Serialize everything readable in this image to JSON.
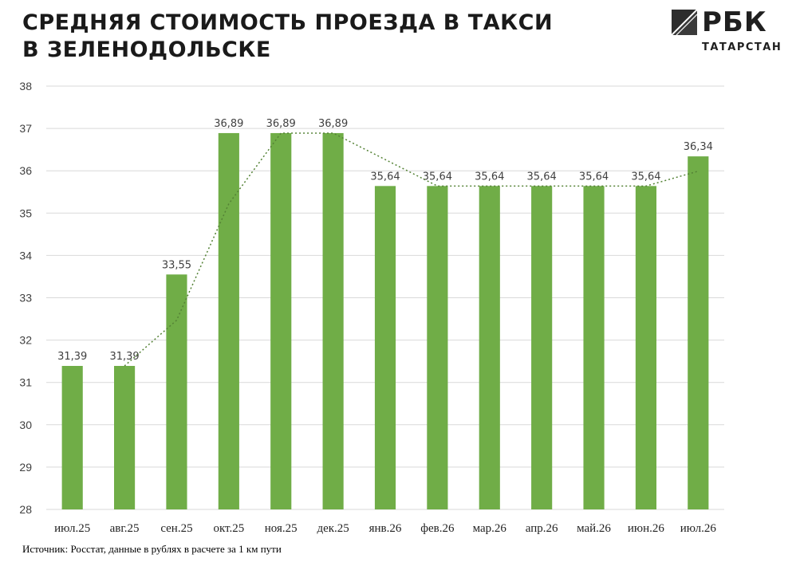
{
  "title_line1": "СРЕДНЯЯ СТОИМОСТЬ ПРОЕЗДА В ТАКСИ",
  "title_line2": "В ЗЕЛЕНОДОЛЬСКЕ",
  "logo": {
    "brand": "РБК",
    "region": "ТАТАРСТАН",
    "icon": "rbc-logo-icon"
  },
  "source": "Источник: Росстат, данные в рублях в расчете за 1 км пути",
  "colors": {
    "bar": "#70ad47",
    "trendline": "#548235",
    "grid": "#d9d9d9",
    "text": "#404040"
  },
  "chart_data": {
    "type": "bar",
    "categories": [
      "июл.25",
      "авг.25",
      "сен.25",
      "окт.25",
      "ноя.25",
      "дек.25",
      "янв.26",
      "фев.26",
      "мар.26",
      "апр.26",
      "май.26",
      "июн.26",
      "июл.26"
    ],
    "values": [
      31.39,
      31.39,
      33.55,
      36.89,
      36.89,
      36.89,
      35.64,
      35.64,
      35.64,
      35.64,
      35.64,
      35.64,
      36.34
    ],
    "data_labels": [
      "31,39",
      "31,39",
      "33,55",
      "36,89",
      "36,89",
      "36,89",
      "35,64",
      "35,64",
      "35,64",
      "35,64",
      "35,64",
      "35,64",
      "36,34"
    ],
    "ylim": [
      28,
      38
    ],
    "yticks": [
      28,
      29,
      30,
      31,
      32,
      33,
      34,
      35,
      36,
      37,
      38
    ],
    "grid": true,
    "trendline": "moving-average",
    "legend": "none"
  }
}
